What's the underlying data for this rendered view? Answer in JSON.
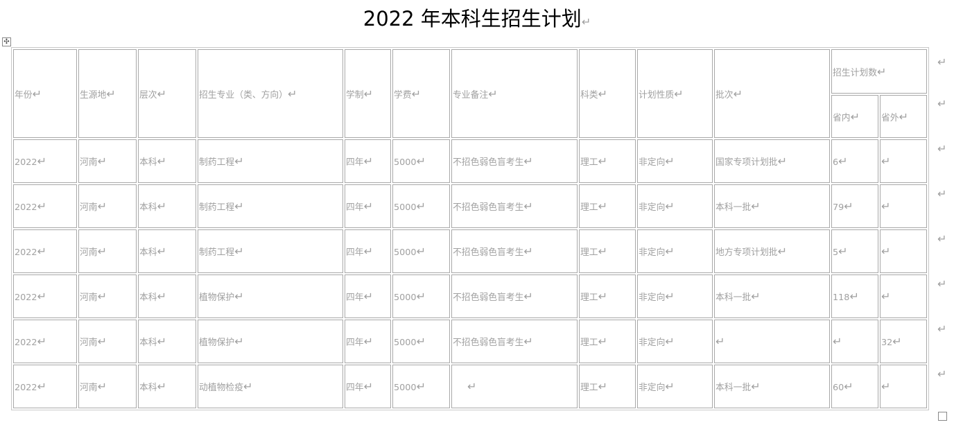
{
  "title": "2022 年本科生招生计划",
  "headers": [
    "年份",
    "生源地",
    "层次",
    "招生专业（类、方向）",
    "学制",
    "学费",
    "专业备注",
    "科类",
    "计划性质",
    "批次"
  ],
  "plan_header": "招生计划数",
  "plan_sub": [
    "省内",
    "省外"
  ],
  "rows": [
    [
      "2022",
      "河南",
      "本科",
      "制药工程",
      "四年",
      "5000",
      "不招色弱色盲考生",
      "理工",
      "非定向",
      "国家专项计划批",
      "6",
      ""
    ],
    [
      "2022",
      "河南",
      "本科",
      "制药工程",
      "四年",
      "5000",
      "不招色弱色盲考生",
      "理工",
      "非定向",
      "本科一批",
      "79",
      ""
    ],
    [
      "2022",
      "河南",
      "本科",
      "制药工程",
      "四年",
      "5000",
      "不招色弱色盲考生",
      "理工",
      "非定向",
      "地方专项计划批",
      "5",
      ""
    ],
    [
      "2022",
      "河南",
      "本科",
      "植物保护",
      "四年",
      "5000",
      "不招色弱色盲考生",
      "理工",
      "非定向",
      "本科一批",
      "118",
      ""
    ],
    [
      "2022",
      "河南",
      "本科",
      "植物保护",
      "四年",
      "5000",
      "不招色弱色盲考生",
      "理工",
      "非定向",
      "",
      "",
      "32"
    ],
    [
      "2022",
      "河南",
      "本科",
      "动植物检疫",
      "四年",
      "5000",
      "",
      "理工",
      "非定向",
      "本科一批",
      "60",
      ""
    ]
  ]
}
